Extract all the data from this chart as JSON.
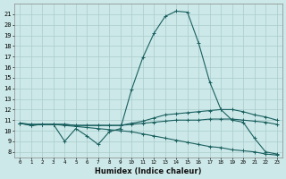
{
  "xlabel": "Humidex (Indice chaleur)",
  "bg_color": "#cce8e8",
  "grid_color": "#aacccc",
  "line_color": "#1a6060",
  "xlim": [
    -0.5,
    23.5
  ],
  "ylim": [
    7.5,
    22.0
  ],
  "xticks": [
    0,
    1,
    2,
    3,
    4,
    5,
    6,
    7,
    8,
    9,
    10,
    11,
    12,
    13,
    14,
    15,
    16,
    17,
    18,
    19,
    20,
    21,
    22,
    23
  ],
  "yticks": [
    8,
    9,
    10,
    11,
    12,
    13,
    14,
    15,
    16,
    17,
    18,
    19,
    20,
    21
  ],
  "line1_x": [
    0,
    1,
    2,
    3,
    4,
    5,
    6,
    7,
    8,
    9,
    10,
    11,
    12,
    13,
    14,
    15,
    16,
    17,
    18,
    19,
    20,
    21,
    22,
    23
  ],
  "line1_y": [
    10.7,
    10.5,
    10.6,
    10.6,
    9.0,
    10.2,
    9.5,
    8.7,
    9.9,
    10.2,
    13.9,
    16.9,
    19.2,
    20.8,
    21.3,
    21.2,
    18.3,
    14.6,
    12.0,
    11.0,
    10.8,
    9.3,
    8.0,
    7.8
  ],
  "line2_x": [
    0,
    1,
    2,
    3,
    4,
    5,
    6,
    7,
    8,
    9,
    10,
    11,
    12,
    13,
    14,
    15,
    16,
    17,
    18,
    19,
    20,
    21,
    22,
    23
  ],
  "line2_y": [
    10.7,
    10.6,
    10.6,
    10.6,
    10.6,
    10.5,
    10.5,
    10.5,
    10.5,
    10.5,
    10.7,
    10.9,
    11.2,
    11.5,
    11.6,
    11.7,
    11.8,
    11.9,
    12.0,
    12.0,
    11.8,
    11.5,
    11.3,
    11.0
  ],
  "line3_x": [
    0,
    1,
    2,
    3,
    4,
    5,
    6,
    7,
    8,
    9,
    10,
    11,
    12,
    13,
    14,
    15,
    16,
    17,
    18,
    19,
    20,
    21,
    22,
    23
  ],
  "line3_y": [
    10.7,
    10.6,
    10.6,
    10.6,
    10.6,
    10.5,
    10.5,
    10.5,
    10.5,
    10.5,
    10.6,
    10.7,
    10.8,
    10.9,
    11.0,
    11.0,
    11.0,
    11.1,
    11.1,
    11.1,
    11.0,
    10.9,
    10.8,
    10.6
  ],
  "line4_x": [
    0,
    1,
    2,
    3,
    4,
    5,
    6,
    7,
    8,
    9,
    10,
    11,
    12,
    13,
    14,
    15,
    16,
    17,
    18,
    19,
    20,
    21,
    22,
    23
  ],
  "line4_y": [
    10.7,
    10.5,
    10.6,
    10.6,
    10.5,
    10.4,
    10.3,
    10.2,
    10.1,
    10.0,
    9.9,
    9.7,
    9.5,
    9.3,
    9.1,
    8.9,
    8.7,
    8.5,
    8.4,
    8.2,
    8.1,
    8.0,
    7.8,
    7.7
  ]
}
